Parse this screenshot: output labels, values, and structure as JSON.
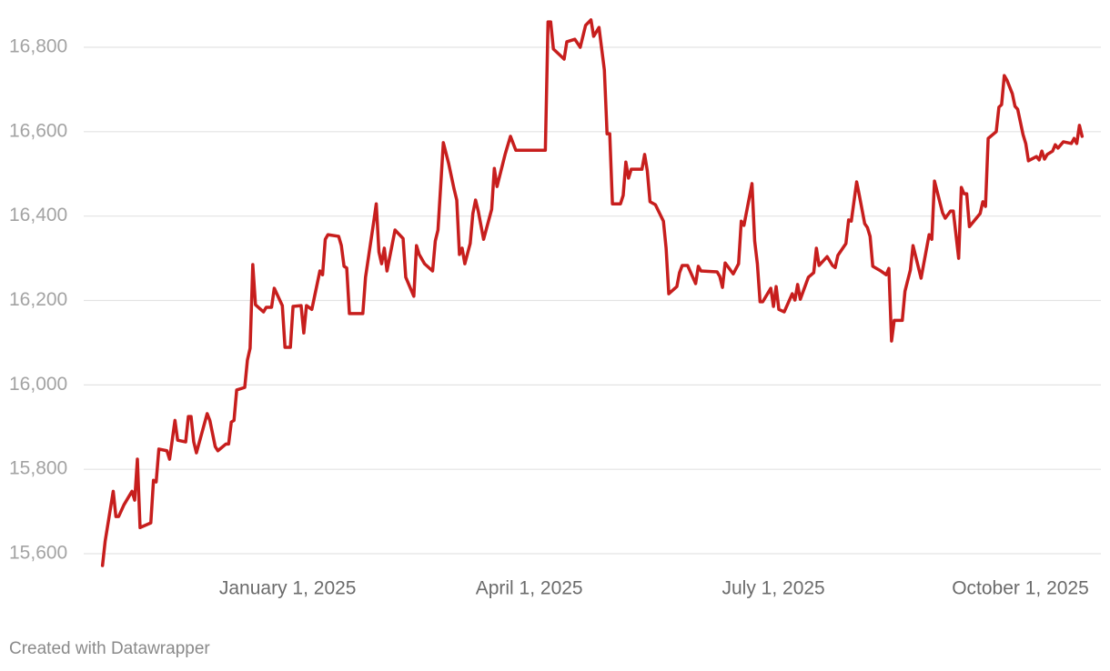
{
  "chart_data": {
    "type": "line",
    "color": "#c71e1d",
    "grid": true,
    "credit": "Created with Datawrapper",
    "xlim": [
      "2024-10-17",
      "2025-10-31"
    ],
    "xticks": [
      {
        "value": "2025-01-01",
        "label": "January 1, 2025"
      },
      {
        "value": "2025-04-01",
        "label": "April 1, 2025"
      },
      {
        "value": "2025-07-01",
        "label": "July 1, 2025"
      },
      {
        "value": "2025-10-01",
        "label": "October 1, 2025"
      }
    ],
    "ylim": [
      15560,
      16870
    ],
    "yticks": [
      {
        "value": 15600,
        "label": "15,600"
      },
      {
        "value": 15800,
        "label": "15,800"
      },
      {
        "value": 16000,
        "label": "16,000"
      },
      {
        "value": 16200,
        "label": "16,200"
      },
      {
        "value": 16400,
        "label": "16,400"
      },
      {
        "value": 16600,
        "label": "16,600"
      },
      {
        "value": 16800,
        "label": "16,800"
      }
    ],
    "x": [
      "2024-10-24",
      "2024-10-25",
      "2024-10-28",
      "2024-10-29",
      "2024-10-30",
      "2024-11-01",
      "2024-11-04",
      "2024-11-05",
      "2024-11-06",
      "2024-11-07",
      "2024-11-11",
      "2024-11-12",
      "2024-11-13",
      "2024-11-14",
      "2024-11-17",
      "2024-11-18",
      "2024-11-20",
      "2024-11-21",
      "2024-11-24",
      "2024-11-25",
      "2024-11-26",
      "2024-11-27",
      "2024-11-28",
      "2024-12-02",
      "2024-12-03",
      "2024-12-05",
      "2024-12-06",
      "2024-12-09",
      "2024-12-10",
      "2024-12-11",
      "2024-12-12",
      "2024-12-13",
      "2024-12-16",
      "2024-12-17",
      "2024-12-18",
      "2024-12-19",
      "2024-12-20",
      "2024-12-23",
      "2024-12-24",
      "2024-12-26",
      "2024-12-27",
      "2024-12-30",
      "2024-12-31",
      "2025-01-02",
      "2025-01-03",
      "2025-01-06",
      "2025-01-07",
      "2025-01-08",
      "2025-01-10",
      "2025-01-13",
      "2025-01-14",
      "2025-01-15",
      "2025-01-16",
      "2025-01-20",
      "2025-01-21",
      "2025-01-22",
      "2025-01-23",
      "2025-01-24",
      "2025-01-29",
      "2025-01-30",
      "2025-02-02",
      "2025-02-03",
      "2025-02-04",
      "2025-02-05",
      "2025-02-06",
      "2025-02-07",
      "2025-02-10",
      "2025-02-13",
      "2025-02-14",
      "2025-02-17",
      "2025-02-18",
      "2025-02-19",
      "2025-02-21",
      "2025-02-24",
      "2025-02-25",
      "2025-02-26",
      "2025-02-28",
      "2025-03-02",
      "2025-03-04",
      "2025-03-05",
      "2025-03-06",
      "2025-03-07",
      "2025-03-08",
      "2025-03-10",
      "2025-03-11",
      "2025-03-12",
      "2025-03-13",
      "2025-03-15",
      "2025-03-18",
      "2025-03-19",
      "2025-03-20",
      "2025-03-23",
      "2025-03-25",
      "2025-03-27",
      "2025-04-07",
      "2025-04-08",
      "2025-04-09",
      "2025-04-10",
      "2025-04-14",
      "2025-04-15",
      "2025-04-18",
      "2025-04-20",
      "2025-04-22",
      "2025-04-24",
      "2025-04-25",
      "2025-04-27",
      "2025-04-29",
      "2025-04-30",
      "2025-05-01",
      "2025-05-02",
      "2025-05-05",
      "2025-05-06",
      "2025-05-07",
      "2025-05-08",
      "2025-05-09",
      "2025-05-13",
      "2025-05-14",
      "2025-05-15",
      "2025-05-16",
      "2025-05-18",
      "2025-05-21",
      "2025-05-22",
      "2025-05-23",
      "2025-05-26",
      "2025-05-27",
      "2025-05-28",
      "2025-05-30",
      "2025-06-02",
      "2025-06-03",
      "2025-06-04",
      "2025-06-10",
      "2025-06-11",
      "2025-06-12",
      "2025-06-13",
      "2025-06-16",
      "2025-06-18",
      "2025-06-19",
      "2025-06-20",
      "2025-06-23",
      "2025-06-24",
      "2025-06-25",
      "2025-06-26",
      "2025-06-27",
      "2025-06-30",
      "2025-07-01",
      "2025-07-02",
      "2025-07-03",
      "2025-07-05",
      "2025-07-08",
      "2025-07-09",
      "2025-07-10",
      "2025-07-11",
      "2025-07-14",
      "2025-07-16",
      "2025-07-17",
      "2025-07-18",
      "2025-07-21",
      "2025-07-23",
      "2025-07-24",
      "2025-07-25",
      "2025-07-28",
      "2025-07-29",
      "2025-07-30",
      "2025-08-01",
      "2025-08-02",
      "2025-08-04",
      "2025-08-05",
      "2025-08-06",
      "2025-08-07",
      "2025-08-10",
      "2025-08-12",
      "2025-08-13",
      "2025-08-14",
      "2025-08-15",
      "2025-08-17",
      "2025-08-18",
      "2025-08-19",
      "2025-08-21",
      "2025-08-22",
      "2025-08-25",
      "2025-08-28",
      "2025-08-29",
      "2025-08-30",
      "2025-09-02",
      "2025-09-03",
      "2025-09-05",
      "2025-09-06",
      "2025-09-08",
      "2025-09-09",
      "2025-09-10",
      "2025-09-11",
      "2025-09-12",
      "2025-09-16",
      "2025-09-17",
      "2025-09-18",
      "2025-09-19",
      "2025-09-22",
      "2025-09-23",
      "2025-09-24",
      "2025-09-25",
      "2025-09-26",
      "2025-09-28",
      "2025-09-29",
      "2025-09-30",
      "2025-10-02",
      "2025-10-03",
      "2025-10-04",
      "2025-10-07",
      "2025-10-08",
      "2025-10-09",
      "2025-10-10",
      "2025-10-11",
      "2025-10-13",
      "2025-10-14",
      "2025-10-15",
      "2025-10-17",
      "2025-10-20",
      "2025-10-21",
      "2025-10-22",
      "2025-10-23",
      "2025-10-24"
    ],
    "values": [
      15572,
      15630,
      15748,
      15688,
      15688,
      15716,
      15748,
      15727,
      15824,
      15662,
      15673,
      15774,
      15770,
      15848,
      15844,
      15824,
      15916,
      15869,
      15865,
      15925,
      15925,
      15865,
      15839,
      15932,
      15916,
      15854,
      15844,
      15860,
      15860,
      15912,
      15916,
      15988,
      15994,
      16059,
      16087,
      16285,
      16190,
      16173,
      16184,
      16184,
      16229,
      16188,
      16089,
      16089,
      16186,
      16188,
      16123,
      16188,
      16179,
      16270,
      16261,
      16345,
      16356,
      16352,
      16330,
      16281,
      16277,
      16169,
      16169,
      16255,
      16384,
      16429,
      16315,
      16287,
      16324,
      16270,
      16367,
      16347,
      16255,
      16210,
      16330,
      16309,
      16287,
      16270,
      16341,
      16367,
      16574,
      16524,
      16464,
      16438,
      16309,
      16324,
      16287,
      16335,
      16406,
      16438,
      16412,
      16345,
      16416,
      16513,
      16470,
      16546,
      16589,
      16556,
      16556,
      16860,
      16860,
      16796,
      16772,
      16813,
      16819,
      16800,
      16852,
      16865,
      16826,
      16847,
      16746,
      16595,
      16595,
      16429,
      16429,
      16449,
      16528,
      16490,
      16511,
      16511,
      16546,
      16507,
      16434,
      16427,
      16388,
      16324,
      16216,
      16233,
      16266,
      16283,
      16283,
      16240,
      16281,
      16270,
      16268,
      16257,
      16231,
      16289,
      16263,
      16287,
      16388,
      16378,
      16477,
      16341,
      16287,
      16197,
      16197,
      16229,
      16186,
      16233,
      16179,
      16173,
      16216,
      16201,
      16238,
      16203,
      16255,
      16266,
      16324,
      16283,
      16304,
      16283,
      16278,
      16307,
      16335,
      16391,
      16388,
      16481,
      16449,
      16382,
      16373,
      16352,
      16281,
      16270,
      16261,
      16276,
      16104,
      16153,
      16153,
      16153,
      16222,
      16272,
      16330,
      16253,
      16356,
      16345,
      16483,
      16408,
      16395,
      16412,
      16412,
      16300,
      16468,
      16453,
      16453,
      16375,
      16406,
      16434,
      16423,
      16584,
      16600,
      16658,
      16664,
      16733,
      16722,
      16690,
      16660,
      16653,
      16593,
      16572,
      16531,
      16541,
      16533,
      16554,
      16535,
      16546,
      16554,
      16569,
      16561,
      16576,
      16572,
      16584,
      16572,
      16615,
      16589
    ]
  }
}
